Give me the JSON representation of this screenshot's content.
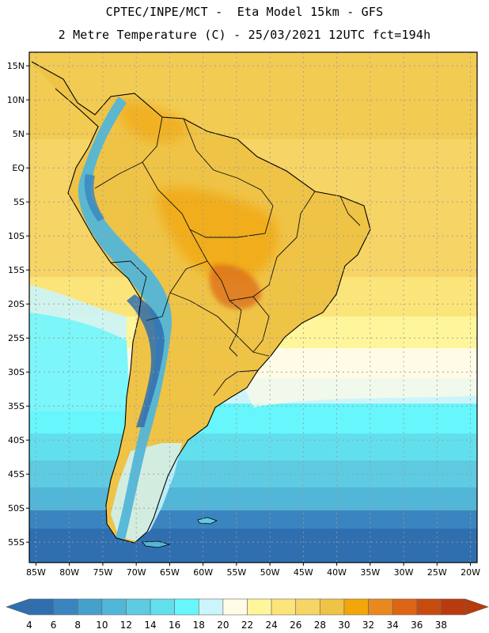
{
  "title": {
    "line1": "CPTEC/INPE/MCT -  Eta Model 15km - GFS",
    "line2": "2 Metre Temperature (C) - 25/03/2021 12UTC fct=194h"
  },
  "map": {
    "extent": {
      "lon_min": -86,
      "lon_max": -19,
      "lat_min": -58,
      "lat_max": 17
    },
    "lat_labels": [
      {
        "lat": 15,
        "label": "15N"
      },
      {
        "lat": 10,
        "label": "10N"
      },
      {
        "lat": 5,
        "label": "5N"
      },
      {
        "lat": 0,
        "label": "EQ"
      },
      {
        "lat": -5,
        "label": "5S"
      },
      {
        "lat": -10,
        "label": "10S"
      },
      {
        "lat": -15,
        "label": "15S"
      },
      {
        "lat": -20,
        "label": "20S"
      },
      {
        "lat": -25,
        "label": "25S"
      },
      {
        "lat": -30,
        "label": "30S"
      },
      {
        "lat": -35,
        "label": "35S"
      },
      {
        "lat": -40,
        "label": "40S"
      },
      {
        "lat": -45,
        "label": "45S"
      },
      {
        "lat": -50,
        "label": "50S"
      },
      {
        "lat": -55,
        "label": "55S"
      }
    ],
    "lon_labels": [
      {
        "lon": -85,
        "label": "85W"
      },
      {
        "lon": -80,
        "label": "80W"
      },
      {
        "lon": -75,
        "label": "75W"
      },
      {
        "lon": -70,
        "label": "70W"
      },
      {
        "lon": -65,
        "label": "65W"
      },
      {
        "lon": -60,
        "label": "60W"
      },
      {
        "lon": -55,
        "label": "55W"
      },
      {
        "lon": -50,
        "label": "50W"
      },
      {
        "lon": -45,
        "label": "45W"
      },
      {
        "lon": -40,
        "label": "40W"
      },
      {
        "lon": -35,
        "label": "35W"
      },
      {
        "lon": -30,
        "label": "30W"
      },
      {
        "lon": -25,
        "label": "25W"
      },
      {
        "lon": -20,
        "label": "20W"
      }
    ]
  },
  "colorbar": {
    "units": "C",
    "levels": [
      "4",
      "6",
      "8",
      "10",
      "12",
      "14",
      "16",
      "18",
      "20",
      "22",
      "24",
      "26",
      "28",
      "30",
      "32",
      "34",
      "36",
      "38"
    ],
    "colors": [
      "#2f6fb0",
      "#3a85c0",
      "#45a0cc",
      "#52b6d8",
      "#5ecbe2",
      "#62dfec",
      "#66f6fb",
      "#ccf4fb",
      "#fffbe6",
      "#fff59a",
      "#fbe57a",
      "#f6d465",
      "#efc346",
      "#f2a60a",
      "#e8891f",
      "#dc6616",
      "#c74b0f",
      "#b83b0d"
    ],
    "low_arrow_color": "#2f6fb0",
    "high_arrow_color": "#b83b0d"
  }
}
